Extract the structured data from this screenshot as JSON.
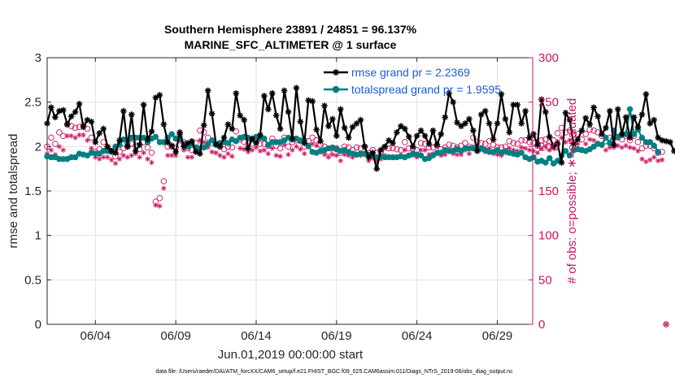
{
  "chart_data": {
    "type": "line",
    "title": "Southern Hemisphere 23891 / 24851 = 96.137%",
    "subtitle": "MARINE_SFC_ALTIMETER @ 1 surface",
    "xlabel": "Jun.01,2019 00:00:00 start",
    "ylabel_left": "rmse and totalspread",
    "ylabel_right": "# of obs: o=possible; ∗=evaluated",
    "xlim": [
      1,
      31.2
    ],
    "ylim_left": [
      0,
      3
    ],
    "ylim_right": [
      0,
      300
    ],
    "x_tick_values": [
      4,
      9,
      14,
      19,
      24,
      29
    ],
    "x_tick_labels": [
      "06/04",
      "06/09",
      "06/14",
      "06/19",
      "06/24",
      "06/29"
    ],
    "y_left_ticks": [
      0,
      0.5,
      1,
      1.5,
      2,
      2.5,
      3
    ],
    "y_left_tick_labels": [
      "0",
      "0.5",
      "1",
      "1.5",
      "2",
      "2.5",
      "3"
    ],
    "y_right_ticks": [
      0,
      50,
      100,
      150,
      200,
      250,
      300
    ],
    "y_right_tick_labels": [
      "0",
      "50",
      "100",
      "150",
      "200",
      "250",
      "300"
    ],
    "grid": true,
    "legend_position": "top-right",
    "footnote": "data file: /Users/raeder/DAI/ATM_forcXX/CAM6_setup/f.e21.FHIST_BGC.f09_025.CAM6assim.011/Diags_NTrS_2019-06/obs_diag_output.nc",
    "series": [
      {
        "name": "rmse grand pr = 2.2369",
        "axis": "left",
        "color": "#000000",
        "marker": "asterisk",
        "x_start": 1.0,
        "x_step": 0.25,
        "values": [
          2.26,
          2.44,
          2.33,
          2.4,
          2.41,
          2.25,
          2.34,
          2.39,
          2.48,
          2.22,
          2.3,
          2.28,
          2.05,
          2.15,
          2.2,
          2.0,
          1.95,
          1.93,
          2.07,
          2.4,
          2.0,
          2.36,
          1.95,
          2.02,
          2.47,
          2.08,
          2.17,
          2.55,
          2.58,
          2.25,
          2.05,
          2.01,
          1.94,
          2.16,
          2.0,
          2.04,
          2.06,
          1.94,
          1.92,
          2.24,
          2.63,
          2.37,
          2.03,
          2.0,
          2.1,
          2.25,
          2.2,
          2.6,
          2.35,
          2.3,
          1.98,
          2.09,
          2.04,
          2.13,
          2.57,
          2.42,
          2.6,
          2.35,
          2.2,
          2.63,
          2.39,
          2.09,
          2.66,
          2.28,
          2.04,
          2.52,
          2.51,
          2.19,
          2.06,
          2.46,
          2.23,
          2.31,
          2.12,
          2.42,
          2.21,
          2.1,
          2.22,
          2.26,
          2.3,
          2.0,
          1.88,
          1.93,
          1.75,
          1.96,
          2.0,
          2.07,
          2.04,
          2.16,
          2.23,
          2.2,
          2.11,
          2.0,
          2.12,
          2.18,
          2.12,
          2.03,
          2.18,
          2.02,
          2.14,
          2.33,
          2.6,
          2.5,
          2.27,
          2.23,
          2.26,
          2.31,
          2.18,
          1.95,
          2.36,
          2.4,
          2.26,
          2.08,
          2.26,
          2.59,
          2.31,
          2.16,
          2.47,
          2.47,
          2.26,
          2.4,
          2.1,
          2.14,
          2.02,
          2.53,
          2.39,
          2.11,
          2.0,
          2.03,
          1.82,
          2.38,
          2.3,
          2.03,
          2.08,
          2.18,
          2.32,
          2.25,
          2.44,
          2.34,
          2.14,
          2.21,
          2.4,
          2.02,
          2.42,
          2.14,
          2.33,
          2.1,
          2.33,
          2.22,
          2.36,
          2.59,
          2.26,
          2.3,
          2.1,
          2.07,
          2.06,
          2.05,
          1.95
        ]
      },
      {
        "name": "totalspread grand pr = 1.9595",
        "axis": "left",
        "color": "#008080",
        "marker": "circle",
        "x_start": 1.0,
        "x_step": 0.25,
        "values": [
          1.89,
          1.88,
          1.88,
          1.86,
          1.86,
          1.86,
          1.88,
          1.88,
          1.92,
          1.91,
          1.9,
          1.93,
          1.92,
          1.92,
          1.95,
          1.95,
          1.94,
          2.0,
          2.02,
          2.08,
          2.03,
          2.1,
          2.1,
          2.1,
          2.1,
          2.05,
          2.09,
          2.11,
          2.05,
          2.05,
          2.1,
          2.14,
          2.09,
          2.1,
          2.03,
          2.0,
          2.03,
          1.99,
          1.98,
          1.99,
          2.03,
          2.07,
          2.02,
          2.04,
          2.05,
          2.04,
          2.08,
          2.06,
          2.1,
          2.11,
          2.1,
          2.08,
          2.11,
          2.1,
          2.09,
          2.02,
          2.05,
          2.05,
          2.05,
          2.07,
          2.1,
          2.08,
          2.09,
          2.07,
          2.07,
          2.01,
          1.94,
          1.93,
          1.95,
          1.96,
          1.98,
          1.99,
          1.97,
          1.95,
          1.96,
          1.94,
          1.92,
          1.91,
          1.92,
          1.92,
          1.91,
          1.9,
          1.88,
          1.89,
          1.88,
          1.88,
          1.88,
          1.88,
          1.89,
          1.88,
          1.9,
          1.92,
          1.91,
          1.9,
          1.86,
          1.87,
          1.9,
          1.93,
          1.93,
          1.96,
          1.95,
          1.95,
          1.97,
          1.95,
          1.98,
          1.98,
          1.98,
          1.97,
          1.98,
          1.96,
          1.94,
          1.94,
          1.96,
          1.93,
          1.95,
          1.93,
          1.92,
          1.91,
          1.93,
          1.88,
          1.86,
          1.88,
          1.83,
          1.84,
          1.82,
          1.87,
          1.81,
          1.84,
          1.9,
          1.95,
          1.9,
          1.96,
          1.97,
          1.96,
          1.95,
          1.97,
          2.0,
          2.03,
          2.02,
          2.1,
          2.04,
          2.18,
          2.11,
          2.13,
          2.14,
          2.42,
          2.14,
          2.19,
          2.1,
          2.05,
          2.05,
          2.01,
          1.94
        ]
      },
      {
        "name": "obs possible",
        "axis": "right",
        "color": "#cc1461",
        "marker": "open-circle",
        "x_start": 1.0,
        "x_step": 0.25,
        "values": [
          200,
          210,
          203,
          216,
          212,
          225,
          223,
          221,
          222,
          224,
          220,
          210,
          194,
          197,
          205,
          198,
          195,
          189,
          194,
          198,
          200,
          203,
          201,
          197,
          205,
          199,
          193,
          138,
          142,
          161,
          200,
          200,
          199,
          214,
          205,
          198,
          196,
          204,
          218,
          216,
          210,
          204,
          202,
          200,
          197,
          200,
          199,
          217,
          208,
          205,
          203,
          203,
          206,
          203,
          203,
          201,
          209,
          201,
          198,
          210,
          200,
          205,
          207,
          206,
          200,
          206,
          210,
          207,
          202,
          200,
          194,
          198,
          198,
          193,
          200,
          199,
          196,
          199,
          198,
          200,
          193,
          196,
          193,
          194,
          199,
          198,
          198,
          197,
          196,
          205,
          198,
          198,
          196,
          204,
          203,
          199,
          199,
          201,
          197,
          199,
          202,
          201,
          199,
          201,
          204,
          200,
          210,
          205,
          204,
          203,
          206,
          202,
          199,
          199,
          200,
          206,
          204,
          203,
          207,
          207,
          205,
          204,
          201,
          207,
          208,
          205,
          207,
          215,
          221,
          216,
          218,
          214,
          214,
          208,
          214,
          219,
          218,
          216,
          212,
          206,
          210,
          210,
          210,
          208,
          212,
          207,
          212,
          205,
          198,
          201,
          201,
          198,
          193,
          194,
          0
        ]
      },
      {
        "name": "obs evaluated",
        "axis": "right",
        "color": "#cc1461",
        "marker": "asterisk",
        "x_start": 1.0,
        "x_step": 0.25,
        "values": [
          192,
          196,
          191,
          200,
          196,
          212,
          212,
          210,
          213,
          213,
          207,
          198,
          188,
          186,
          188,
          188,
          185,
          181,
          186,
          190,
          188,
          190,
          192,
          188,
          193,
          186,
          182,
          134,
          133,
          153,
          190,
          190,
          190,
          206,
          196,
          188,
          188,
          195,
          207,
          205,
          199,
          194,
          193,
          190,
          188,
          192,
          189,
          207,
          198,
          197,
          194,
          196,
          199,
          195,
          196,
          192,
          198,
          190,
          189,
          202,
          191,
          196,
          200,
          197,
          192,
          199,
          203,
          201,
          194,
          191,
          188,
          191,
          190,
          184,
          191,
          190,
          188,
          191,
          190,
          191,
          184,
          187,
          184,
          186,
          190,
          188,
          188,
          188,
          189,
          196,
          190,
          190,
          188,
          196,
          196,
          191,
          192,
          192,
          190,
          191,
          196,
          192,
          191,
          191,
          196,
          192,
          200,
          196,
          196,
          194,
          198,
          192,
          191,
          190,
          193,
          198,
          196,
          195,
          199,
          198,
          196,
          195,
          193,
          198,
          200,
          196,
          198,
          206,
          210,
          205,
          207,
          203,
          203,
          197,
          203,
          208,
          207,
          204,
          201,
          196,
          199,
          199,
          201,
          199,
          201,
          199,
          198,
          195,
          186,
          183,
          185,
          188,
          184,
          185,
          0
        ]
      }
    ]
  }
}
